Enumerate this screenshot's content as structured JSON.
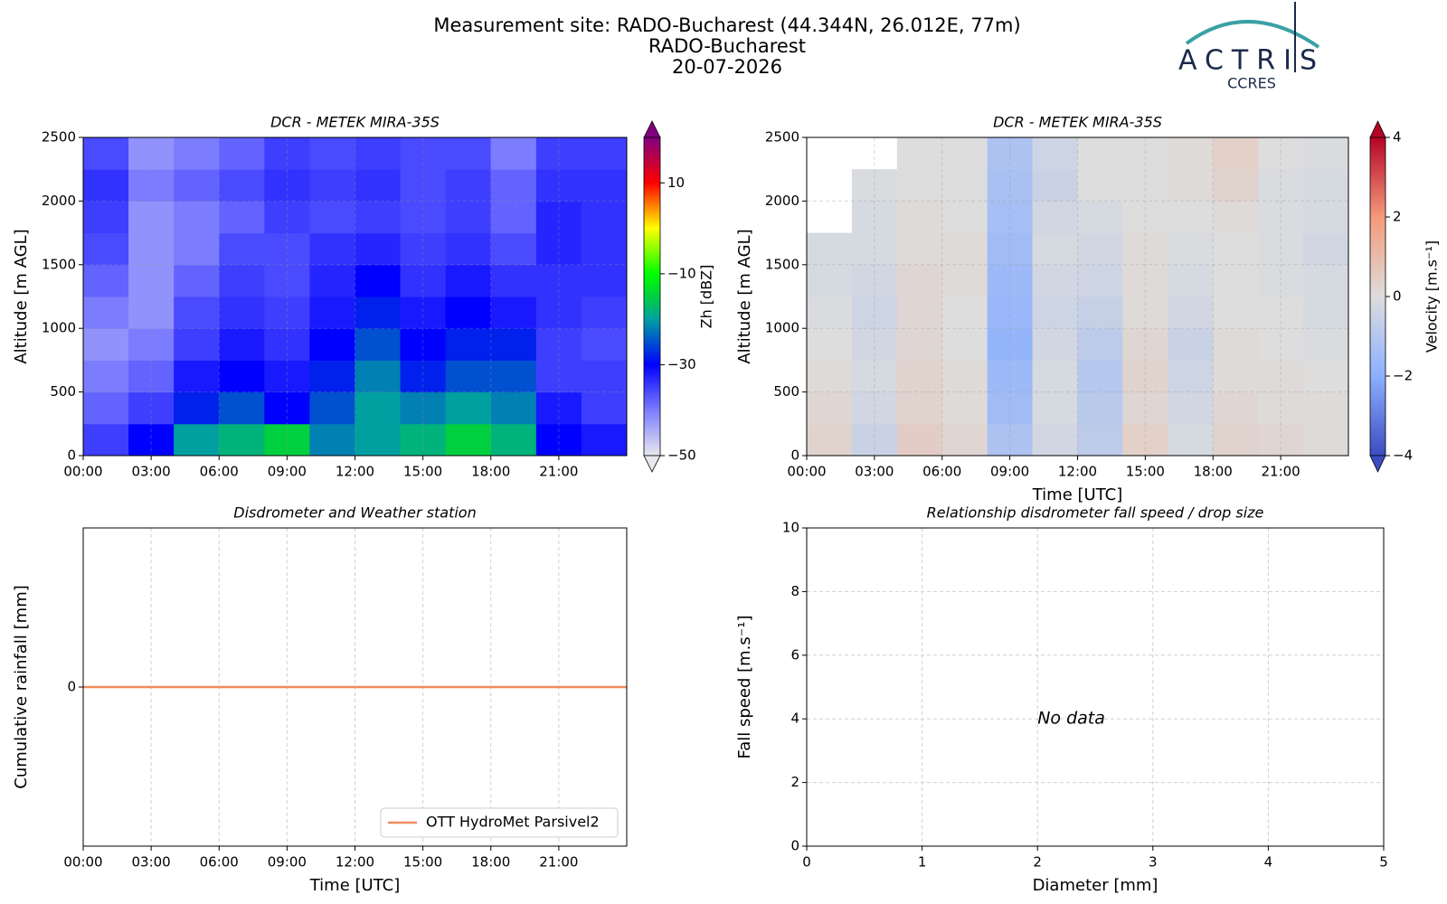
{
  "header": {
    "title_lines": [
      "Measurement site: RADO-Bucharest (44.344N, 26.012E, 77m)",
      "RADO-Bucharest",
      "20-07-2026"
    ],
    "logo": "ACTRIS",
    "logo_sub": "CCRES"
  },
  "chart_data": [
    {
      "type": "heatmap",
      "title": "DCR - METEK MIRA-35S",
      "y_label": "Altitude [m AGL]",
      "colorbar_label": "Zh [dBZ]",
      "x": [
        1,
        3,
        5,
        7,
        9,
        11,
        13,
        15,
        17,
        19,
        21,
        23
      ],
      "y": [
        125,
        375,
        625,
        875,
        1125,
        1375,
        1625,
        1875,
        2125,
        2375
      ],
      "z": [
        [
          -35,
          -30,
          -20,
          -18,
          -15,
          -22,
          -20,
          -18,
          -15,
          -18,
          -30,
          -32
        ],
        [
          -38,
          -35,
          -28,
          -25,
          -30,
          -25,
          -20,
          -22,
          -20,
          -22,
          -32,
          -35
        ],
        [
          -40,
          -38,
          -32,
          -30,
          -32,
          -28,
          -22,
          -28,
          -25,
          -25,
          -35,
          -35
        ],
        [
          -42,
          -40,
          -35,
          -32,
          -34,
          -30,
          -25,
          -30,
          -28,
          -28,
          -35,
          -36
        ],
        [
          -40,
          -42,
          -36,
          -34,
          -35,
          -32,
          -28,
          -32,
          -30,
          -32,
          -34,
          -35
        ],
        [
          -38,
          -42,
          -38,
          -35,
          -36,
          -33,
          -30,
          -34,
          -32,
          -34,
          -34,
          -34
        ],
        [
          -36,
          -42,
          -40,
          -36,
          -36,
          -34,
          -33,
          -35,
          -34,
          -36,
          -33,
          -34
        ],
        [
          -35,
          -42,
          -40,
          -38,
          -35,
          -36,
          -35,
          -36,
          -35,
          -38,
          -33,
          -34
        ],
        [
          -34,
          -40,
          -38,
          -36,
          -34,
          -35,
          -34,
          -36,
          -35,
          -38,
          -34,
          -34
        ],
        [
          -36,
          -42,
          -40,
          -38,
          -35,
          -36,
          -35,
          -36,
          -36,
          -40,
          -35,
          -35
        ]
      ],
      "xlim": [
        0,
        24
      ],
      "ylim": [
        0,
        2500
      ],
      "xticks": [
        {
          "value": 0,
          "label": "00:00"
        },
        {
          "value": 3,
          "label": "03:00"
        },
        {
          "value": 6,
          "label": "06:00"
        },
        {
          "value": 9,
          "label": "09:00"
        },
        {
          "value": 12,
          "label": "12:00"
        },
        {
          "value": 15,
          "label": "15:00"
        },
        {
          "value": 18,
          "label": "18:00"
        },
        {
          "value": 21,
          "label": "21:00"
        }
      ],
      "yticks": [
        0,
        500,
        1000,
        1500,
        2000,
        2500
      ],
      "zlim": [
        -50,
        20
      ],
      "zticks": [
        {
          "value": -50,
          "label": "−50"
        },
        {
          "value": -30,
          "label": "−30"
        },
        {
          "value": -10,
          "label": "−10"
        },
        10
      ],
      "colormap": [
        {
          "value": -50,
          "color": "#e8e8ee"
        },
        {
          "value": -40,
          "color": "#7c7cff"
        },
        {
          "value": -30,
          "color": "#0000ff"
        },
        {
          "value": -20,
          "color": "#00a0a0"
        },
        {
          "value": -15,
          "color": "#00d040"
        },
        {
          "value": -10,
          "color": "#00ff00"
        },
        {
          "value": 0,
          "color": "#ffff00"
        },
        {
          "value": 5,
          "color": "#ff8000"
        },
        {
          "value": 10,
          "color": "#ff0000"
        },
        {
          "value": 20,
          "color": "#800080"
        }
      ],
      "colorbar_extend": "both",
      "grid": true
    },
    {
      "type": "heatmap",
      "title": "DCR - METEK MIRA-35S",
      "x_label": "Time [UTC]",
      "y_label": "Altitude [m AGL]",
      "colorbar_label": "Velocity [m.s⁻¹]",
      "x": [
        1,
        3,
        5,
        7,
        9,
        11,
        13,
        15,
        17,
        19,
        21,
        23
      ],
      "y": [
        125,
        375,
        625,
        875,
        1125,
        1375,
        1625,
        1875,
        2125,
        2375
      ],
      "z": [
        [
          0.3,
          -0.5,
          0.5,
          0.2,
          -1.2,
          -0.3,
          -0.8,
          0.4,
          -0.2,
          0.3,
          0.2,
          0.1
        ],
        [
          0.2,
          -0.3,
          0.3,
          0.1,
          -1.5,
          -0.2,
          -0.9,
          0.2,
          -0.3,
          0.2,
          0.1,
          0.1
        ],
        [
          0.1,
          -0.2,
          0.3,
          0.1,
          -1.6,
          -0.2,
          -1.0,
          0.3,
          -0.4,
          0.1,
          0.1,
          0.0
        ],
        [
          0.0,
          -0.3,
          0.2,
          0.0,
          -1.8,
          -0.3,
          -0.8,
          0.2,
          -0.5,
          0.1,
          0.0,
          -0.1
        ],
        [
          -0.1,
          -0.4,
          0.2,
          0.0,
          -1.7,
          -0.4,
          -0.6,
          0.1,
          -0.3,
          0.0,
          0.0,
          -0.2
        ],
        [
          -0.2,
          -0.3,
          0.2,
          0.1,
          -1.6,
          -0.3,
          -0.4,
          0.1,
          -0.2,
          0.0,
          -0.1,
          -0.2
        ],
        [
          -0.2,
          -0.2,
          0.1,
          0.1,
          -1.5,
          -0.2,
          -0.3,
          0.1,
          -0.1,
          0.0,
          -0.1,
          -0.3
        ],
        [
          null,
          -0.2,
          0.1,
          0.0,
          -1.4,
          -0.3,
          -0.2,
          0.0,
          0.0,
          0.1,
          -0.1,
          -0.2
        ],
        [
          null,
          -0.1,
          0.0,
          0.0,
          -1.3,
          -0.5,
          0.0,
          0.0,
          0.1,
          0.3,
          -0.1,
          -0.2
        ],
        [
          null,
          null,
          0.0,
          0.0,
          -1.2,
          -0.4,
          0.0,
          0.0,
          0.1,
          0.4,
          0.0,
          -0.1
        ]
      ],
      "xlim": [
        0,
        24
      ],
      "ylim": [
        0,
        2500
      ],
      "xticks": [
        {
          "value": 0,
          "label": "00:00"
        },
        {
          "value": 3,
          "label": "03:00"
        },
        {
          "value": 6,
          "label": "06:00"
        },
        {
          "value": 9,
          "label": "09:00"
        },
        {
          "value": 12,
          "label": "12:00"
        },
        {
          "value": 15,
          "label": "15:00"
        },
        {
          "value": 18,
          "label": "18:00"
        },
        {
          "value": 21,
          "label": "21:00"
        }
      ],
      "yticks": [
        0,
        500,
        1000,
        1500,
        2000,
        2500
      ],
      "zlim": [
        -4,
        4
      ],
      "zticks": [
        {
          "value": -4,
          "label": "−4"
        },
        {
          "value": -2,
          "label": "−2"
        },
        0,
        2,
        4
      ],
      "colormap": [
        {
          "value": -4,
          "color": "#3b4cc0"
        },
        {
          "value": -2,
          "color": "#8db0fe"
        },
        {
          "value": 0,
          "color": "#dddddd"
        },
        {
          "value": 2,
          "color": "#f49a7b"
        },
        {
          "value": 4,
          "color": "#b40426"
        }
      ],
      "colorbar_extend": "both",
      "grid": true
    },
    {
      "type": "line",
      "title": "Disdrometer and Weather station",
      "x_label": "Time [UTC]",
      "y_label": "Cumulative rainfall [mm]",
      "x": [
        0,
        24
      ],
      "series": [
        {
          "name": "OTT HydroMet Parsivel2",
          "color": "#f08a5d",
          "values": [
            0,
            0
          ]
        }
      ],
      "xlim": [
        0,
        24
      ],
      "ylim": [
        -0.055,
        0.055
      ],
      "xticks": [
        {
          "value": 0,
          "label": "00:00"
        },
        {
          "value": 3,
          "label": "03:00"
        },
        {
          "value": 6,
          "label": "06:00"
        },
        {
          "value": 9,
          "label": "09:00"
        },
        {
          "value": 12,
          "label": "12:00"
        },
        {
          "value": 15,
          "label": "15:00"
        },
        {
          "value": 18,
          "label": "18:00"
        },
        {
          "value": 21,
          "label": "21:00"
        }
      ],
      "yticks": [
        0
      ],
      "legend": "lower right",
      "grid": true
    },
    {
      "type": "scatter",
      "title": "Relationship disdrometer fall speed / drop size",
      "x_label": "Diameter [mm]",
      "y_label": "Fall speed [m.s⁻¹]",
      "annotation": {
        "text": "No data",
        "x": 2,
        "y": 4
      },
      "xlim": [
        0,
        5
      ],
      "ylim": [
        0,
        10
      ],
      "xticks": [
        0,
        1,
        2,
        3,
        4,
        5
      ],
      "yticks": [
        0,
        2,
        4,
        6,
        8,
        10
      ],
      "grid": true
    }
  ]
}
